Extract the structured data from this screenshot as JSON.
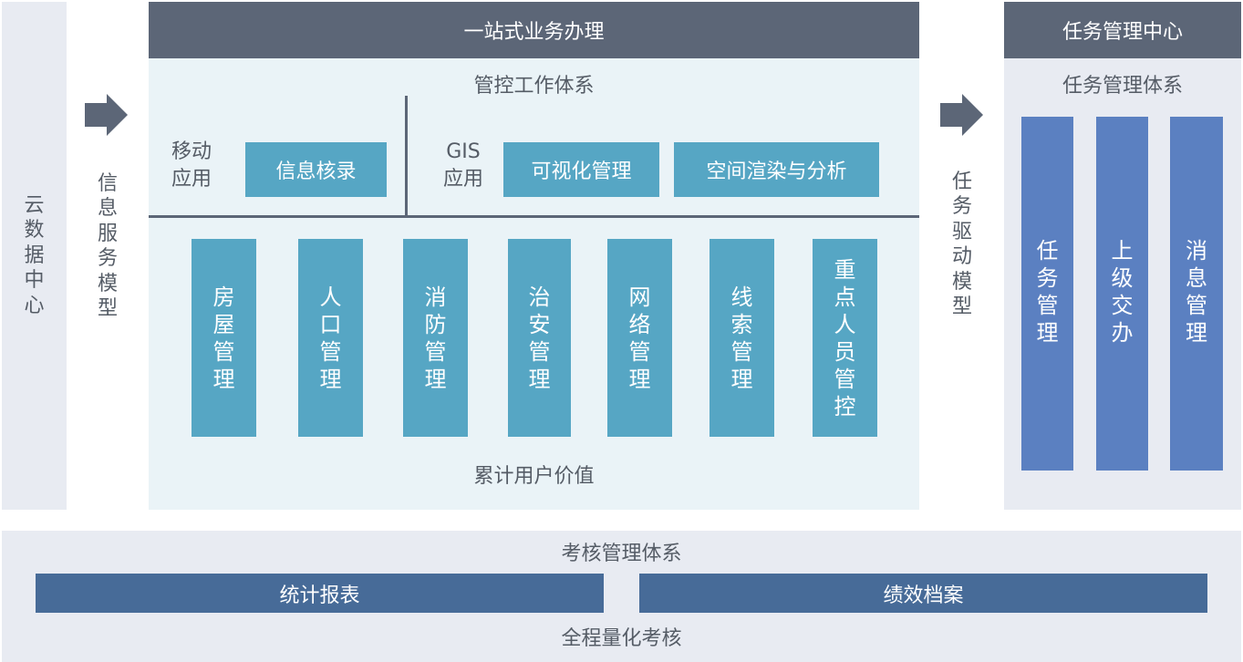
{
  "left": {
    "label": "云数据中心",
    "model": "信息服务模型"
  },
  "main": {
    "title": "一站式业务办理",
    "subtitle": "管控工作体系",
    "mobile": "移动\n应用",
    "mobile_box": "信息核录",
    "gis": "GIS\n应用",
    "gis_boxes": [
      "可视化管理",
      "空间渲染与分析"
    ],
    "columns": [
      "房屋管理",
      "人口管理",
      "消防管理",
      "治安管理",
      "网络管理",
      "线索管理",
      "重点人员管控"
    ],
    "footer": "累计用户价值"
  },
  "task_model": "任务驱动模型",
  "right": {
    "title": "任务管理中心",
    "subtitle": "任务管理体系",
    "columns": [
      "任务管理",
      "上级交办",
      "消息管理"
    ]
  },
  "bottom": {
    "title": "考核管理体系",
    "bars": [
      "统计报表",
      "绩效档案"
    ],
    "footer": "全程量化考核"
  },
  "colors": {
    "header": "#5c6677",
    "teal": "#56a6c4",
    "blue": "#5b80c1",
    "navy": "#476b98",
    "panel": "#e8ebf2",
    "main_bg": "#eaf3f7"
  }
}
